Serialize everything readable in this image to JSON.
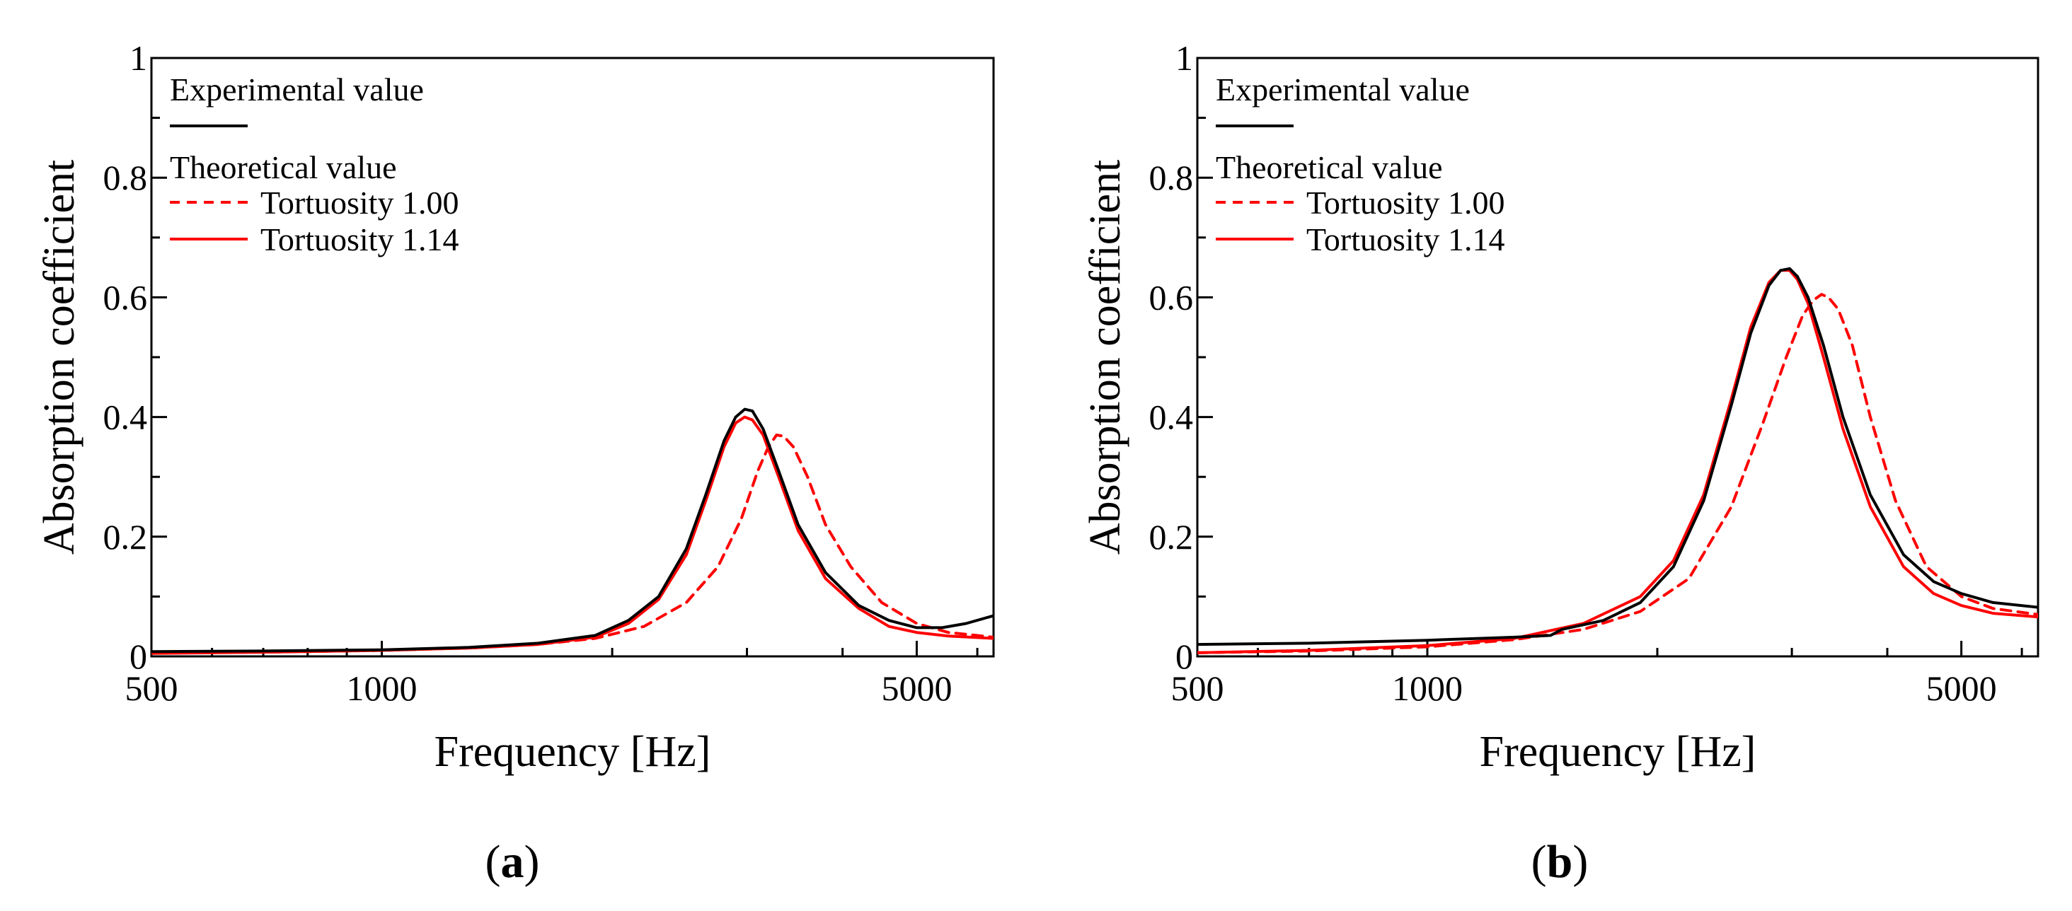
{
  "colors": {
    "experimental": "#000000",
    "theoretical": "#ff0000",
    "axis": "#000000"
  },
  "chart_data": [
    {
      "type": "line",
      "panel": "a",
      "panel_label": {
        "open": "(",
        "letter": "a",
        "close": ")"
      },
      "xlabel": "Frequency [Hz]",
      "ylabel": "Absorption coefficient",
      "xscale": "log",
      "xlim": [
        500,
        6300
      ],
      "ylim": [
        0,
        1
      ],
      "xticks": [
        {
          "value": 500,
          "label": "500"
        },
        {
          "value": 1000,
          "label": "1000"
        },
        {
          "value": 5000,
          "label": "5000"
        }
      ],
      "yticks": [
        {
          "value": 0,
          "label": "0"
        },
        {
          "value": 0.2,
          "label": "0.2"
        },
        {
          "value": 0.4,
          "label": "0.4"
        },
        {
          "value": 0.6,
          "label": "0.6"
        },
        {
          "value": 0.8,
          "label": "0.8"
        },
        {
          "value": 1,
          "label": "1"
        }
      ],
      "legend": {
        "position": "top-left",
        "experimental_header": "Experimental value",
        "theoretical_header": "Theoretical value"
      },
      "series": [
        {
          "name": "Experimental value",
          "style": "solid",
          "color": "#000000",
          "x": [
            500,
            700,
            1000,
            1300,
            1600,
            1900,
            2100,
            2300,
            2500,
            2650,
            2800,
            2900,
            2980,
            3050,
            3150,
            3300,
            3500,
            3800,
            4200,
            4600,
            5000,
            5400,
            5800,
            6300
          ],
          "y": [
            0.008,
            0.009,
            0.011,
            0.015,
            0.022,
            0.035,
            0.06,
            0.1,
            0.18,
            0.27,
            0.36,
            0.4,
            0.413,
            0.41,
            0.38,
            0.31,
            0.22,
            0.14,
            0.085,
            0.06,
            0.048,
            0.048,
            0.055,
            0.068
          ]
        },
        {
          "name": "Tortuosity 1.00",
          "style": "dashed",
          "color": "#ff0000",
          "x": [
            500,
            700,
            1000,
            1300,
            1600,
            1900,
            2200,
            2500,
            2750,
            2950,
            3100,
            3200,
            3280,
            3350,
            3450,
            3600,
            3800,
            4100,
            4500,
            5000,
            5500,
            6300
          ],
          "y": [
            0.006,
            0.007,
            0.01,
            0.014,
            0.02,
            0.03,
            0.05,
            0.09,
            0.15,
            0.23,
            0.31,
            0.35,
            0.37,
            0.368,
            0.35,
            0.3,
            0.22,
            0.15,
            0.09,
            0.055,
            0.04,
            0.032
          ]
        },
        {
          "name": "Tortuosity 1.14",
          "style": "solid",
          "color": "#ff0000",
          "x": [
            500,
            700,
            1000,
            1300,
            1600,
            1900,
            2100,
            2300,
            2500,
            2650,
            2800,
            2900,
            2980,
            3050,
            3150,
            3300,
            3500,
            3800,
            4200,
            4600,
            5000,
            5500,
            6300
          ],
          "y": [
            0.005,
            0.007,
            0.01,
            0.014,
            0.02,
            0.032,
            0.055,
            0.095,
            0.17,
            0.26,
            0.35,
            0.39,
            0.4,
            0.395,
            0.37,
            0.3,
            0.21,
            0.13,
            0.08,
            0.05,
            0.04,
            0.034,
            0.03
          ]
        }
      ]
    },
    {
      "type": "line",
      "panel": "b",
      "panel_label": {
        "open": "(",
        "letter": "b",
        "close": ")"
      },
      "xlabel": "Frequency [Hz]",
      "ylabel": "Absorption coefficient",
      "xscale": "log",
      "xlim": [
        500,
        6300
      ],
      "ylim": [
        0,
        1
      ],
      "xticks": [
        {
          "value": 500,
          "label": "500"
        },
        {
          "value": 1000,
          "label": "1000"
        },
        {
          "value": 5000,
          "label": "5000"
        }
      ],
      "yticks": [
        {
          "value": 0,
          "label": "0"
        },
        {
          "value": 0.2,
          "label": "0.2"
        },
        {
          "value": 0.4,
          "label": "0.4"
        },
        {
          "value": 0.6,
          "label": "0.6"
        },
        {
          "value": 0.8,
          "label": "0.8"
        },
        {
          "value": 1,
          "label": "1"
        }
      ],
      "legend": {
        "position": "top-left",
        "experimental_header": "Experimental value",
        "theoretical_header": "Theoretical value"
      },
      "series": [
        {
          "name": "Experimental value",
          "style": "solid",
          "color": "#000000",
          "x": [
            500,
            700,
            1000,
            1300,
            1450,
            1500,
            1700,
            1900,
            2100,
            2300,
            2500,
            2650,
            2800,
            2900,
            2980,
            3050,
            3150,
            3300,
            3500,
            3800,
            4200,
            4600,
            5000,
            5500,
            6300
          ],
          "y": [
            0.02,
            0.022,
            0.027,
            0.032,
            0.035,
            0.045,
            0.06,
            0.09,
            0.15,
            0.26,
            0.42,
            0.54,
            0.62,
            0.645,
            0.648,
            0.635,
            0.6,
            0.52,
            0.4,
            0.27,
            0.17,
            0.125,
            0.105,
            0.09,
            0.082
          ]
        },
        {
          "name": "Tortuosity 1.00",
          "style": "dashed",
          "color": "#ff0000",
          "x": [
            500,
            700,
            1000,
            1300,
            1600,
            1900,
            2200,
            2500,
            2750,
            2950,
            3100,
            3200,
            3280,
            3350,
            3450,
            3600,
            3800,
            4100,
            4500,
            5000,
            5500,
            6300
          ],
          "y": [
            0.006,
            0.009,
            0.016,
            0.028,
            0.045,
            0.075,
            0.13,
            0.25,
            0.39,
            0.5,
            0.57,
            0.595,
            0.605,
            0.6,
            0.58,
            0.52,
            0.4,
            0.26,
            0.15,
            0.1,
            0.08,
            0.07
          ]
        },
        {
          "name": "Tortuosity 1.14",
          "style": "solid",
          "color": "#ff0000",
          "x": [
            500,
            700,
            1000,
            1300,
            1600,
            1900,
            2100,
            2300,
            2500,
            2650,
            2800,
            2900,
            2980,
            3050,
            3150,
            3300,
            3500,
            3800,
            4200,
            4600,
            5000,
            5500,
            6300
          ],
          "y": [
            0.006,
            0.01,
            0.018,
            0.03,
            0.055,
            0.1,
            0.16,
            0.27,
            0.43,
            0.55,
            0.625,
            0.645,
            0.645,
            0.63,
            0.59,
            0.5,
            0.38,
            0.25,
            0.15,
            0.105,
            0.085,
            0.072,
            0.066
          ]
        }
      ]
    }
  ]
}
